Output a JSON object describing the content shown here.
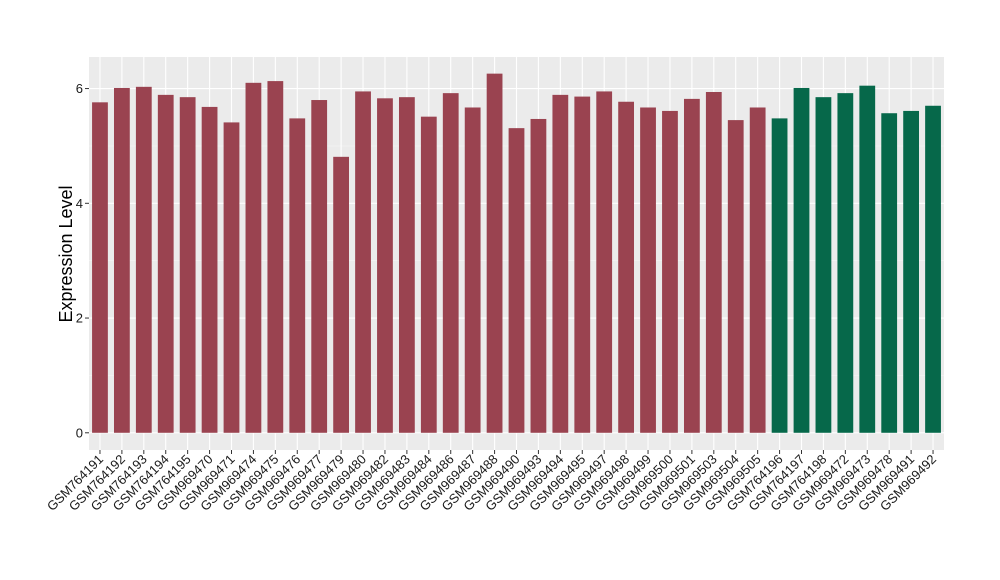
{
  "chart_data": {
    "type": "bar",
    "title": "",
    "xlabel": "",
    "ylabel": "Expression Level",
    "ylim": [
      -0.3,
      6.55
    ],
    "yticks": [
      0,
      2,
      4,
      6
    ],
    "grid": true,
    "legend": "none",
    "colors": {
      "group1": "#9a4350",
      "group2": "#06684a",
      "panel": "#ebebeb",
      "grid_major": "#ffffff",
      "grid_minor": "#f5f5f5"
    },
    "categories": [
      "GSM764191",
      "GSM764192",
      "GSM764193",
      "GSM764194",
      "GSM764195",
      "GSM969470",
      "GSM969471",
      "GSM969474",
      "GSM969475",
      "GSM969476",
      "GSM969477",
      "GSM969479",
      "GSM969480",
      "GSM969482",
      "GSM969483",
      "GSM969484",
      "GSM969486",
      "GSM969487",
      "GSM969488",
      "GSM969490",
      "GSM969493",
      "GSM969494",
      "GSM969495",
      "GSM969497",
      "GSM969498",
      "GSM969499",
      "GSM969500",
      "GSM969501",
      "GSM969503",
      "GSM969504",
      "GSM969505",
      "GSM764196",
      "GSM764197",
      "GSM764198",
      "GSM969472",
      "GSM969473",
      "GSM969478",
      "GSM969491",
      "GSM969492"
    ],
    "values": [
      5.76,
      6.01,
      6.03,
      5.89,
      5.85,
      5.68,
      5.41,
      6.1,
      6.13,
      5.48,
      5.8,
      4.81,
      5.95,
      5.83,
      5.85,
      5.51,
      5.92,
      5.67,
      6.26,
      5.31,
      5.47,
      5.89,
      5.86,
      5.95,
      5.77,
      5.67,
      5.61,
      5.82,
      5.94,
      5.45,
      5.67,
      5.48,
      6.01,
      5.85,
      5.92,
      6.05,
      5.57,
      5.61,
      5.7
    ],
    "groups": [
      "group1",
      "group1",
      "group1",
      "group1",
      "group1",
      "group1",
      "group1",
      "group1",
      "group1",
      "group1",
      "group1",
      "group1",
      "group1",
      "group1",
      "group1",
      "group1",
      "group1",
      "group1",
      "group1",
      "group1",
      "group1",
      "group1",
      "group1",
      "group1",
      "group1",
      "group1",
      "group1",
      "group1",
      "group1",
      "group1",
      "group1",
      "group2",
      "group2",
      "group2",
      "group2",
      "group2",
      "group2",
      "group2",
      "group2"
    ]
  }
}
